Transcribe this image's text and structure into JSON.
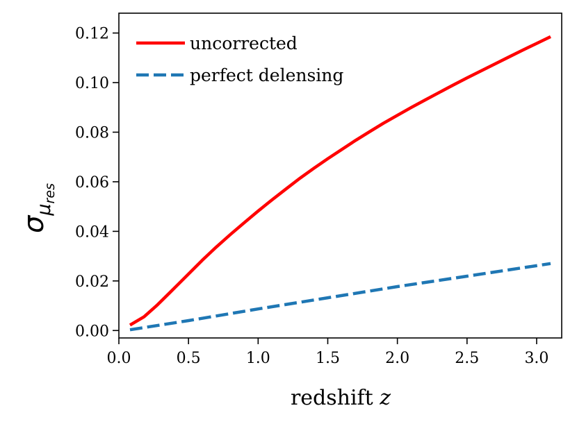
{
  "chart_data": {
    "type": "line",
    "title": "",
    "xlabel_text": "redshift ",
    "xlabel_var": "z",
    "ylabel_main": "σ",
    "ylabel_sub_main": "μ",
    "ylabel_sub_sub": "res",
    "xlim": [
      0.0,
      3.18
    ],
    "ylim": [
      -0.003,
      0.128
    ],
    "xticks": [
      0.0,
      0.5,
      1.0,
      1.5,
      2.0,
      2.5,
      3.0
    ],
    "xtick_labels": [
      "0.0",
      "0.5",
      "1.0",
      "1.5",
      "2.0",
      "2.5",
      "3.0"
    ],
    "yticks": [
      0.0,
      0.02,
      0.04,
      0.06,
      0.08,
      0.1,
      0.12
    ],
    "ytick_labels": [
      "0.00",
      "0.02",
      "0.04",
      "0.06",
      "0.08",
      "0.10",
      "0.12"
    ],
    "legend_position": "top-left",
    "series": [
      {
        "name": "uncorrected",
        "color": "#ff0000",
        "style": "solid",
        "x": [
          0.08,
          0.18,
          0.27,
          0.37,
          0.5,
          0.6,
          0.7,
          0.8,
          0.9,
          1.0,
          1.1,
          1.2,
          1.3,
          1.4,
          1.5,
          1.6,
          1.7,
          1.8,
          1.9,
          2.0,
          2.1,
          2.2,
          2.3,
          2.4,
          2.5,
          2.6,
          2.7,
          2.8,
          2.9,
          3.0,
          3.1
        ],
        "y": [
          0.0022,
          0.0055,
          0.01,
          0.0155,
          0.0228,
          0.0284,
          0.0337,
          0.0387,
          0.0435,
          0.0482,
          0.0527,
          0.0571,
          0.0614,
          0.0654,
          0.0693,
          0.073,
          0.0767,
          0.0802,
          0.0836,
          0.0868,
          0.09,
          0.093,
          0.096,
          0.099,
          0.1019,
          0.1047,
          0.1075,
          0.1103,
          0.1131,
          0.1158,
          0.1185
        ]
      },
      {
        "name": "perfect delensing",
        "color": "#1f77b4",
        "style": "dashed",
        "x": [
          0.08,
          0.5,
          1.0,
          1.5,
          2.0,
          2.5,
          3.1
        ],
        "y": [
          0.0003,
          0.004,
          0.0087,
          0.0132,
          0.0177,
          0.0219,
          0.027
        ]
      }
    ]
  }
}
